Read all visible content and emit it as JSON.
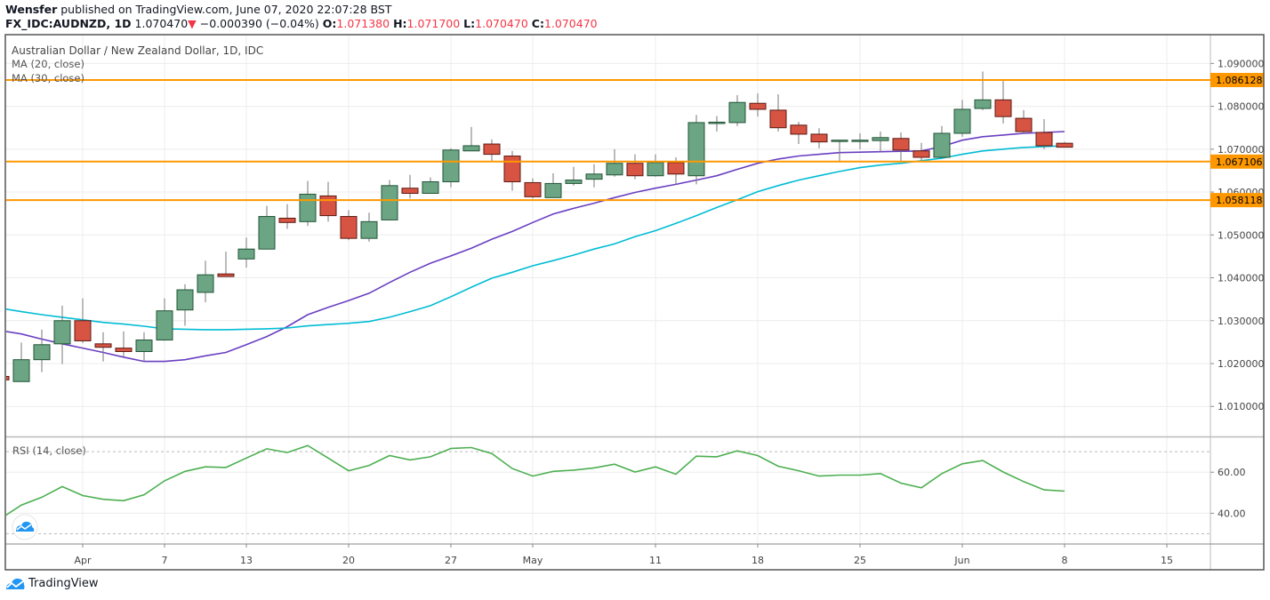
{
  "header": {
    "author": "Wensfer",
    "published": "published on TradingView.com, June 07, 2020 22:07:28 BST",
    "symbol": "FX_IDC:AUDNZD, 1D",
    "last": "1.070470",
    "change_arrow": "down-triangle-icon",
    "change": "−0.000390 (−0.04%)",
    "o_label": "O:",
    "o": "1.071380",
    "h_label": "H:",
    "h": "1.071700",
    "l_label": "L:",
    "l": "1.070470",
    "c_label": "C:",
    "c": "1.070470"
  },
  "legend": {
    "title": "Australian Dollar / New Zealand Dollar, 1D, IDC",
    "ma20": "MA (20, close)",
    "ma30": "MA (30, close)",
    "rsi": "RSI (14, close)"
  },
  "footer": {
    "brand": "TradingView",
    "logo_icon": "tradingview-cloud-icon"
  },
  "colors": {
    "up": "#6ba583",
    "up_border": "#225437",
    "down": "#d75442",
    "down_border": "#5b1a13",
    "ma20": "#6a3fc1",
    "ma30": "#00bcd4",
    "level": "#ff9800",
    "rsi": "#4caf50",
    "header_value": "#f23645"
  },
  "chart_data": [
    {
      "type": "candlestick",
      "title": "Australian Dollar / New Zealand Dollar, 1D, IDC",
      "ylim": [
        1.003,
        1.0965
      ],
      "grid": true,
      "y_ticks": [
        "1.010000",
        "1.020000",
        "1.030000",
        "1.040000",
        "1.050000",
        "1.060000",
        "1.070000",
        "1.080000",
        "1.090000"
      ],
      "x_ticks": [
        {
          "label": "Apr",
          "bar": 4
        },
        {
          "label": "7",
          "bar": 8
        },
        {
          "label": "13",
          "bar": 12
        },
        {
          "label": "20",
          "bar": 17
        },
        {
          "label": "27",
          "bar": 22
        },
        {
          "label": "May",
          "bar": 26
        },
        {
          "label": "11",
          "bar": 32
        },
        {
          "label": "18",
          "bar": 37
        },
        {
          "label": "25",
          "bar": 42
        },
        {
          "label": "Jun",
          "bar": 47
        },
        {
          "label": "8",
          "bar": 52
        },
        {
          "label": "15",
          "bar": 57
        }
      ],
      "ohlc": [
        [
          1.017,
          1.0172,
          1.016,
          1.0162
        ],
        [
          1.0158,
          1.0249,
          1.0158,
          1.0209
        ],
        [
          1.0209,
          1.0279,
          1.018,
          1.0244
        ],
        [
          1.0246,
          1.0335,
          1.0199,
          1.03
        ],
        [
          1.03,
          1.0352,
          1.0248,
          1.0253
        ],
        [
          1.0246,
          1.0273,
          1.0205,
          1.0238
        ],
        [
          1.0236,
          1.0275,
          1.0216,
          1.0228
        ],
        [
          1.0228,
          1.0273,
          1.0205,
          1.0255
        ],
        [
          1.0255,
          1.0352,
          1.0253,
          1.0323
        ],
        [
          1.0325,
          1.0385,
          1.0288,
          1.0372
        ],
        [
          1.0366,
          1.044,
          1.0343,
          1.0407
        ],
        [
          1.0409,
          1.0461,
          1.0403,
          1.0403
        ],
        [
          1.0444,
          1.0494,
          1.0424,
          1.0467
        ],
        [
          1.0467,
          1.0568,
          1.0467,
          1.0543
        ],
        [
          1.0539,
          1.0572,
          1.0514,
          1.0529
        ],
        [
          1.0531,
          1.0626,
          1.0521,
          1.0595
        ],
        [
          1.0591,
          1.0624,
          1.0531,
          1.0545
        ],
        [
          1.0543,
          1.0558,
          1.0488,
          1.0492
        ],
        [
          1.0492,
          1.0552,
          1.0484,
          1.0531
        ],
        [
          1.0535,
          1.0628,
          1.0535,
          1.0615
        ],
        [
          1.0609,
          1.064,
          1.0585,
          1.0597
        ],
        [
          1.0597,
          1.0634,
          1.0597,
          1.0624
        ],
        [
          1.0624,
          1.0702,
          1.0611,
          1.0698
        ],
        [
          1.0696,
          1.0752,
          1.0696,
          1.0708
        ],
        [
          1.0712,
          1.0723,
          1.0671,
          1.0688
        ],
        [
          1.0684,
          1.0696,
          1.0603,
          1.0624
        ],
        [
          1.0622,
          1.0632,
          1.0585,
          1.0589
        ],
        [
          1.0587,
          1.0644,
          1.0587,
          1.062
        ],
        [
          1.062,
          1.0659,
          1.0615,
          1.0628
        ],
        [
          1.063,
          1.0665,
          1.0611,
          1.0642
        ],
        [
          1.064,
          1.07,
          1.0636,
          1.0667
        ],
        [
          1.0667,
          1.0688,
          1.063,
          1.0638
        ],
        [
          1.0638,
          1.0688,
          1.0636,
          1.0669
        ],
        [
          1.0669,
          1.0681,
          1.0618,
          1.0642
        ],
        [
          1.0638,
          1.078,
          1.0618,
          1.0762
        ],
        [
          1.0762,
          1.0777,
          1.0741,
          1.0763
        ],
        [
          1.0762,
          1.0826,
          1.0754,
          1.0809
        ],
        [
          1.0807,
          1.083,
          1.0776,
          1.0793
        ],
        [
          1.0791,
          1.0828,
          1.0741,
          1.075
        ],
        [
          1.0756,
          1.0764,
          1.0712,
          1.0735
        ],
        [
          1.0735,
          1.0749,
          1.0702,
          1.0717
        ],
        [
          1.072,
          1.0722,
          1.0669,
          1.0721
        ],
        [
          1.072,
          1.0737,
          1.07,
          1.0721
        ],
        [
          1.072,
          1.0741,
          1.0694,
          1.0727
        ],
        [
          1.0725,
          1.0739,
          1.0671,
          1.0698
        ],
        [
          1.0696,
          1.0715,
          1.0671,
          1.0681
        ],
        [
          1.0681,
          1.0754,
          1.0681,
          1.0737
        ],
        [
          1.0737,
          1.0815,
          1.0729,
          1.0793
        ],
        [
          1.0795,
          1.0881,
          1.0791,
          1.0815
        ],
        [
          1.0815,
          1.0859,
          1.076,
          1.0776
        ],
        [
          1.0772,
          1.0791,
          1.0737,
          1.0741
        ],
        [
          1.0739,
          1.077,
          1.07,
          1.0708
        ],
        [
          1.07138,
          1.0717,
          1.07047,
          1.07047
        ]
      ],
      "series": [
        {
          "name": "MA (20, close)",
          "color": "#6a3fc1",
          "values": [
            1.0277,
            1.0269,
            1.0257,
            1.0246,
            1.0236,
            1.0226,
            1.0215,
            1.0205,
            1.0205,
            1.0209,
            1.0218,
            1.0226,
            1.0244,
            1.0263,
            1.0286,
            1.0314,
            1.0331,
            1.0347,
            1.0364,
            1.0389,
            1.0413,
            1.0434,
            1.0451,
            1.0469,
            1.049,
            1.0508,
            1.0529,
            1.0549,
            1.0562,
            1.0574,
            1.0587,
            1.0599,
            1.0609,
            1.0618,
            1.0628,
            1.0638,
            1.0653,
            1.0667,
            1.0677,
            1.0684,
            1.0688,
            1.0692,
            1.0693,
            1.0694,
            1.0695,
            1.0696,
            1.0706,
            1.0721,
            1.0729,
            1.0733,
            1.0737,
            1.0739,
            1.0741
          ]
        },
        {
          "name": "MA (30, close)",
          "color": "#00bcd4",
          "values": [
            1.0329,
            1.0321,
            1.0314,
            1.0308,
            1.0302,
            1.0296,
            1.0292,
            1.0287,
            1.0281,
            1.028,
            1.0279,
            1.0279,
            1.028,
            1.0281,
            1.0283,
            1.0288,
            1.0291,
            1.0294,
            1.0298,
            1.0308,
            1.0321,
            1.0335,
            1.0356,
            1.0378,
            1.0399,
            1.0413,
            1.0428,
            1.044,
            1.0453,
            1.0467,
            1.0479,
            1.0496,
            1.051,
            1.0527,
            1.0545,
            1.0564,
            1.0582,
            1.0601,
            1.0615,
            1.0628,
            1.0638,
            1.0648,
            1.0657,
            1.0663,
            1.0667,
            1.0673,
            1.0679,
            1.0688,
            1.0696,
            1.07,
            1.0704,
            1.0706,
            1.0708
          ]
        }
      ],
      "levels": [
        {
          "value": 1.086128,
          "label": "1.086128"
        },
        {
          "value": 1.067106,
          "label": "1.067106"
        },
        {
          "value": 1.058118,
          "label": "1.058118"
        }
      ]
    },
    {
      "type": "line",
      "title": "RSI (14, close)",
      "ylim": [
        25,
        77
      ],
      "y_ticks": [
        "40.00",
        "60.00"
      ],
      "bands": [
        30,
        70
      ],
      "series": [
        {
          "name": "RSI (14, close)",
          "color": "#4caf50",
          "values": [
            37.5,
            44.0,
            47.8,
            53.0,
            48.6,
            46.8,
            46.1,
            49.0,
            55.8,
            60.4,
            62.6,
            62.3,
            66.9,
            71.4,
            69.6,
            73.0,
            66.9,
            60.7,
            63.3,
            68.1,
            66.0,
            67.5,
            71.6,
            72.0,
            69.1,
            61.8,
            58.1,
            60.4,
            61.0,
            62.1,
            63.9,
            60.1,
            62.6,
            59.0,
            67.8,
            67.5,
            70.4,
            68.1,
            62.9,
            60.7,
            58.1,
            58.6,
            58.6,
            59.3,
            54.7,
            52.4,
            59.3,
            64.1,
            65.7,
            60.1,
            55.4,
            51.4,
            50.8
          ]
        }
      ]
    }
  ]
}
